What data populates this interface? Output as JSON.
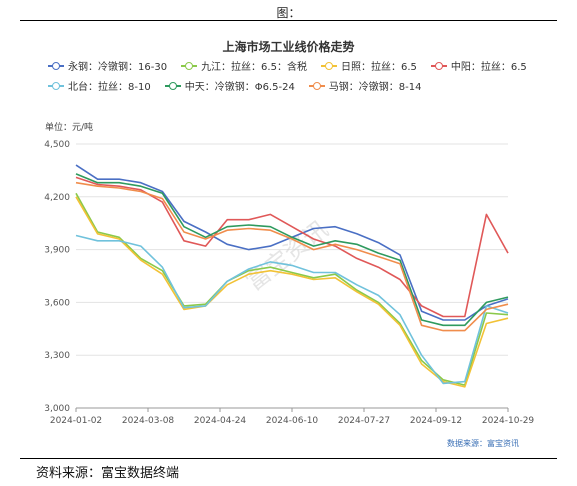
{
  "figure_caption": "图：",
  "source_text": "资料来源：富宝数据终端",
  "footnote": "数据来源：富宝资讯",
  "watermark": "富宝资讯",
  "chart_data": {
    "type": "line",
    "title": "上海市场工业线价格走势",
    "unit_label": "单位：元/吨",
    "xlabel": "",
    "ylabel": "",
    "ylim": [
      3000,
      4500
    ],
    "yticks": [
      3000,
      3300,
      3600,
      3900,
      4200,
      4500
    ],
    "ytick_labels": [
      "3,000",
      "3,300",
      "3,600",
      "3,900",
      "4,200",
      "4,500"
    ],
    "x_ticks": [
      "2024-01-02",
      "2024-03-08",
      "2024-04-24",
      "2024-06-10",
      "2024-07-27",
      "2024-09-12",
      "2024-10-29"
    ],
    "grid": "horizontal",
    "legend_position": "top",
    "series": [
      {
        "name": "永钢：冷镦钢：16-30",
        "color": "#4a6fc4",
        "values": [
          4380,
          4300,
          4300,
          4280,
          4230,
          4060,
          4000,
          3930,
          3900,
          3920,
          3970,
          4020,
          4030,
          3990,
          3940,
          3870,
          3550,
          3500,
          3500,
          3580,
          3620
        ]
      },
      {
        "name": "九江：拉丝：6.5：含税",
        "color": "#8bc94a",
        "values": [
          4220,
          4000,
          3970,
          3850,
          3780,
          3580,
          3590,
          3720,
          3780,
          3800,
          3770,
          3740,
          3760,
          3670,
          3600,
          3480,
          3270,
          3160,
          3130,
          3540,
          3530
        ]
      },
      {
        "name": "日照：拉丝：6.5",
        "color": "#f2c236",
        "values": [
          4200,
          3990,
          3960,
          3840,
          3760,
          3560,
          3580,
          3700,
          3760,
          3780,
          3760,
          3730,
          3740,
          3660,
          3590,
          3470,
          3250,
          3150,
          3120,
          3480,
          3510
        ]
      },
      {
        "name": "中阳：拉丝：6.5",
        "color": "#e05858",
        "values": [
          4310,
          4270,
          4260,
          4240,
          4170,
          3950,
          3920,
          4070,
          4070,
          4100,
          4030,
          3960,
          3920,
          3850,
          3800,
          3730,
          3580,
          3520,
          3520,
          4100,
          3880
        ]
      },
      {
        "name": "北台：拉丝：8-10",
        "color": "#70c2dc",
        "values": [
          3980,
          3950,
          3950,
          3920,
          3800,
          3570,
          3580,
          3720,
          3790,
          3830,
          3810,
          3770,
          3770,
          3700,
          3640,
          3530,
          3300,
          3140,
          3150,
          3580,
          3540
        ]
      },
      {
        "name": "中天：冷镦钢：Φ6.5-24",
        "color": "#2e9a5e",
        "values": [
          4330,
          4280,
          4280,
          4260,
          4220,
          4030,
          3970,
          4030,
          4040,
          4030,
          3970,
          3920,
          3950,
          3930,
          3880,
          3840,
          3500,
          3470,
          3470,
          3600,
          3630
        ]
      },
      {
        "name": "马钢：冷镦钢：8-14",
        "color": "#f08d4c",
        "values": [
          4280,
          4260,
          4250,
          4230,
          4190,
          4000,
          3960,
          4010,
          4020,
          4010,
          3960,
          3900,
          3930,
          3900,
          3860,
          3820,
          3470,
          3440,
          3440,
          3560,
          3590
        ]
      }
    ]
  }
}
